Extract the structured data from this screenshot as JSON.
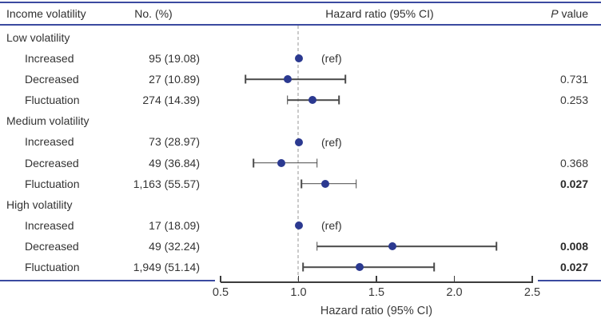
{
  "colors": {
    "rule_blue": "#3b4aa0",
    "marker_navy": "#2b3990",
    "ci_gray": "#4a4a4a",
    "ref_dash_gray": "#cbcbcb",
    "text": "#333333"
  },
  "chart_data": {
    "type": "forest",
    "xlabel": "Hazard ratio (95% CI)",
    "xlim": [
      0.5,
      2.5
    ],
    "xticks": [
      0.5,
      1.0,
      1.5,
      2.0,
      2.5
    ],
    "xtick_labels": [
      "0.5",
      "1.0",
      "1.5",
      "2.0",
      "2.5"
    ],
    "ref_line": 1.0,
    "grid": false,
    "columns": {
      "col1": "Income volatility",
      "col2": "No. (%)",
      "col3": "Hazard ratio (95% CI)",
      "p_italic": "P",
      "p_rest": " value"
    },
    "rows": [
      {
        "type": "section",
        "label": "Low volatility"
      },
      {
        "type": "item",
        "label": "Increased",
        "count": "95 (19.08)",
        "ref": true,
        "ref_label": "(ref)",
        "hr": 1.0
      },
      {
        "type": "item",
        "label": "Decreased",
        "count": "27 (10.89)",
        "hr": 0.93,
        "lo": 0.66,
        "hi": 1.3,
        "p": "0.731",
        "p_bold": false
      },
      {
        "type": "item",
        "label": "Fluctuation",
        "count": "274 (14.39)",
        "hr": 1.09,
        "lo": 0.93,
        "hi": 1.26,
        "p": "0.253",
        "p_bold": false
      },
      {
        "type": "section",
        "label": "Medium volatility"
      },
      {
        "type": "item",
        "label": "Increased",
        "count": "73 (28.97)",
        "ref": true,
        "ref_label": "(ref)",
        "hr": 1.0
      },
      {
        "type": "item",
        "label": "Decreased",
        "count": "49 (36.84)",
        "hr": 0.89,
        "lo": 0.71,
        "hi": 1.12,
        "p": "0.368",
        "p_bold": false
      },
      {
        "type": "item",
        "label": "Fluctuation",
        "count": "1,163 (55.57)",
        "hr": 1.17,
        "lo": 1.02,
        "hi": 1.37,
        "p": "0.027",
        "p_bold": true
      },
      {
        "type": "section",
        "label": "High volatility"
      },
      {
        "type": "item",
        "label": "Increased",
        "count": "17 (18.09)",
        "ref": true,
        "ref_label": "(ref)",
        "hr": 1.0
      },
      {
        "type": "item",
        "label": "Decreased",
        "count": "49 (32.24)",
        "hr": 1.6,
        "lo": 1.12,
        "hi": 2.27,
        "p": "0.008",
        "p_bold": true
      },
      {
        "type": "item",
        "label": "Fluctuation",
        "count": "1,949 (51.14)",
        "hr": 1.39,
        "lo": 1.03,
        "hi": 1.87,
        "p": "0.027",
        "p_bold": true
      }
    ]
  }
}
